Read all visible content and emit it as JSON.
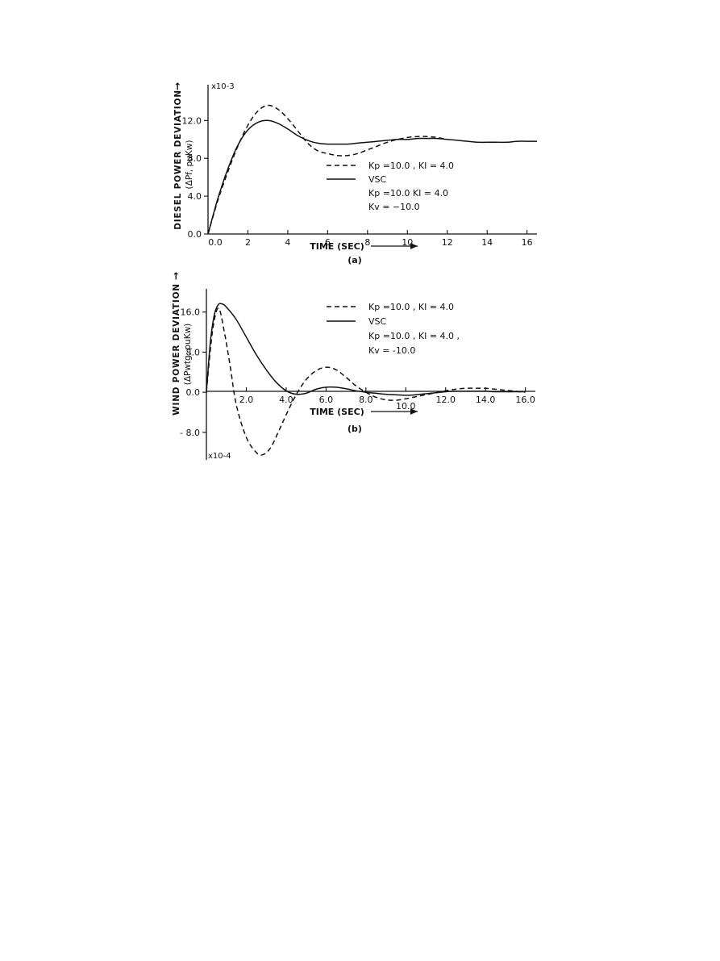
{
  "chart_data": [
    {
      "type": "line",
      "panel_label": "(a)",
      "ylabel": "DIESEL POWER DEVIATION",
      "ylabel_sub": "(ΔPf, puKw)",
      "ylabel_arrow": "→",
      "xlabel": "TIME (SEC)",
      "xlabel_arrow": "⟶",
      "y_multiplier": "x10-3",
      "xlim": [
        0,
        16.5
      ],
      "ylim": [
        0,
        14.5
      ],
      "x_ticks": [
        0,
        2,
        4,
        6,
        8,
        10,
        12,
        14,
        16
      ],
      "x_tick_labels": [
        "0.0",
        "2",
        "4",
        "6",
        "8",
        "10",
        "12",
        "14",
        "16"
      ],
      "y_ticks": [
        0,
        4,
        8,
        12
      ],
      "y_tick_labels": [
        "0.0",
        "4.0",
        "8.0",
        "12.0"
      ],
      "legend": [
        {
          "style": "dashed",
          "lines": [
            "Kp =10.0 , KI = 4.0"
          ]
        },
        {
          "style": "solid",
          "lines": [
            "VSC",
            "Kp =10.0   KI = 4.0",
            "Kv = −10.0"
          ]
        }
      ],
      "series": [
        {
          "style": "dashed",
          "points": [
            [
              0,
              0
            ],
            [
              0.5,
              3.6
            ],
            [
              1,
              6.6
            ],
            [
              1.5,
              9.3
            ],
            [
              2,
              11.5
            ],
            [
              2.5,
              13.0
            ],
            [
              3,
              13.6
            ],
            [
              3.5,
              13.2
            ],
            [
              4,
              12.2
            ],
            [
              4.5,
              10.9
            ],
            [
              5,
              9.6
            ],
            [
              5.5,
              8.8
            ],
            [
              6,
              8.5
            ],
            [
              6.5,
              8.3
            ],
            [
              7,
              8.3
            ],
            [
              7.5,
              8.5
            ],
            [
              8,
              8.9
            ],
            [
              8.5,
              9.3
            ],
            [
              9,
              9.7
            ],
            [
              9.5,
              10.0
            ],
            [
              10,
              10.2
            ],
            [
              10.5,
              10.3
            ],
            [
              11,
              10.3
            ],
            [
              11.5,
              10.2
            ],
            [
              12,
              10.0
            ]
          ]
        },
        {
          "style": "solid",
          "points": [
            [
              0,
              0
            ],
            [
              0.5,
              3.8
            ],
            [
              1,
              6.9
            ],
            [
              1.5,
              9.4
            ],
            [
              2,
              11.0
            ],
            [
              2.5,
              11.8
            ],
            [
              3,
              12.0
            ],
            [
              3.5,
              11.7
            ],
            [
              4,
              11.1
            ],
            [
              4.5,
              10.4
            ],
            [
              5,
              9.9
            ],
            [
              5.5,
              9.6
            ],
            [
              6,
              9.5
            ],
            [
              6.5,
              9.5
            ],
            [
              7,
              9.5
            ],
            [
              7.5,
              9.6
            ],
            [
              8,
              9.7
            ],
            [
              8.5,
              9.8
            ],
            [
              9,
              9.9
            ],
            [
              9.5,
              10.0
            ],
            [
              10,
              10.0
            ],
            [
              10.5,
              10.1
            ],
            [
              11,
              10.1
            ],
            [
              11.5,
              10.1
            ],
            [
              12,
              10.0
            ],
            [
              12.5,
              9.9
            ],
            [
              13,
              9.8
            ],
            [
              13.5,
              9.7
            ],
            [
              14,
              9.7
            ],
            [
              14.5,
              9.7
            ],
            [
              15,
              9.7
            ],
            [
              15.5,
              9.8
            ],
            [
              16,
              9.8
            ],
            [
              16.5,
              9.8
            ]
          ]
        }
      ]
    },
    {
      "type": "line",
      "panel_label": "(b)",
      "ylabel": "WIND POWER DEVIATION",
      "ylabel_sub": "(ΔPwtg, puKw)",
      "ylabel_arrow": "→",
      "xlabel": "TIME (SEC)",
      "xlabel_arrow": "⟶",
      "y_multiplier": "x10-4",
      "xlim": [
        0,
        16.5
      ],
      "ylim": [
        -13.5,
        19.5
      ],
      "x_ticks": [
        2,
        4,
        6,
        8,
        10,
        12,
        14,
        16
      ],
      "x_tick_labels": [
        "2.0",
        "4.0",
        "6.0",
        "8.0",
        "10.0",
        "12.0",
        "14.0",
        "16.0"
      ],
      "y_ticks": [
        -8,
        0,
        8,
        16
      ],
      "y_tick_labels": [
        "- 8.0",
        "0.0",
        "8.0",
        "16.0"
      ],
      "legend": [
        {
          "style": "dashed",
          "lines": [
            "Kp =10.0 , KI = 4.0"
          ]
        },
        {
          "style": "solid",
          "lines": [
            "VSC",
            "Kp =10.0 , KI = 4.0 ,",
            "Kv = -10.0"
          ]
        }
      ],
      "series": [
        {
          "style": "dashed",
          "points": [
            [
              0,
              0
            ],
            [
              0.3,
              12.0
            ],
            [
              0.6,
              16.8
            ],
            [
              0.9,
              12.0
            ],
            [
              1.2,
              5.0
            ],
            [
              1.5,
              -2.5
            ],
            [
              2,
              -9.0
            ],
            [
              2.5,
              -12.0
            ],
            [
              2.8,
              -12.5
            ],
            [
              3.2,
              -11.2
            ],
            [
              3.6,
              -8.0
            ],
            [
              4,
              -4.5
            ],
            [
              4.5,
              -0.5
            ],
            [
              5,
              2.5
            ],
            [
              5.5,
              4.3
            ],
            [
              6,
              5.0
            ],
            [
              6.5,
              4.5
            ],
            [
              7,
              3.0
            ],
            [
              7.5,
              1.3
            ],
            [
              8,
              0.0
            ],
            [
              8.5,
              -1.0
            ],
            [
              9,
              -1.5
            ],
            [
              9.5,
              -1.6
            ],
            [
              10,
              -1.3
            ],
            [
              10.5,
              -0.9
            ],
            [
              11,
              -0.5
            ],
            [
              11.5,
              -0.1
            ],
            [
              12,
              0.3
            ],
            [
              12.5,
              0.6
            ],
            [
              13,
              0.8
            ],
            [
              13.5,
              0.8
            ],
            [
              14,
              0.8
            ],
            [
              14.5,
              0.6
            ],
            [
              15,
              0.4
            ],
            [
              15.5,
              0.2
            ],
            [
              16,
              0.0
            ]
          ]
        },
        {
          "style": "solid",
          "points": [
            [
              0,
              0
            ],
            [
              0.2,
              10.0
            ],
            [
              0.4,
              15.5
            ],
            [
              0.6,
              17.5
            ],
            [
              0.8,
              17.6
            ],
            [
              1,
              17.0
            ],
            [
              1.5,
              14.5
            ],
            [
              2,
              11.0
            ],
            [
              2.5,
              7.5
            ],
            [
              3,
              4.5
            ],
            [
              3.5,
              2.0
            ],
            [
              4,
              0.3
            ],
            [
              4.5,
              -0.4
            ],
            [
              5,
              -0.2
            ],
            [
              5.5,
              0.6
            ],
            [
              6,
              1.0
            ],
            [
              6.5,
              1.0
            ],
            [
              7,
              0.7
            ],
            [
              7.5,
              0.3
            ],
            [
              8,
              0.0
            ],
            [
              8.5,
              -0.2
            ],
            [
              9,
              -0.4
            ],
            [
              9.5,
              -0.5
            ],
            [
              10,
              -0.6
            ],
            [
              10.5,
              -0.5
            ],
            [
              11,
              -0.3
            ],
            [
              11.5,
              -0.1
            ],
            [
              12,
              0.1
            ],
            [
              12.5,
              0.2
            ],
            [
              13,
              0.2
            ],
            [
              13.5,
              0.2
            ],
            [
              14,
              0.2
            ],
            [
              14.5,
              0.1
            ],
            [
              15,
              0.1
            ],
            [
              15.5,
              0.1
            ],
            [
              16,
              0.1
            ]
          ]
        }
      ]
    }
  ]
}
